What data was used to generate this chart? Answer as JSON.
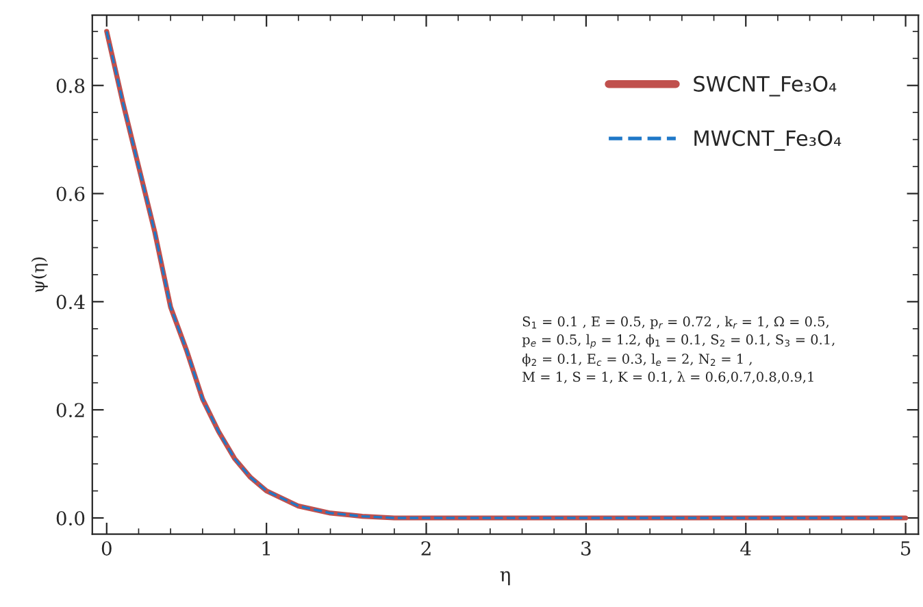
{
  "chart_data": {
    "type": "line",
    "xlabel": "η",
    "ylabel": "ψ(η)",
    "x": [
      0,
      0.1,
      0.2,
      0.3,
      0.4,
      0.5,
      0.6,
      0.7,
      0.8,
      0.9,
      1.0,
      1.2,
      1.4,
      1.6,
      1.8,
      2,
      2.5,
      3,
      3.5,
      4,
      4.5,
      5
    ],
    "series": [
      {
        "name": "SWCNT_Fe₃O₄",
        "color": "#c0504d",
        "line_style": "solid",
        "values": [
          0.9,
          0.77,
          0.65,
          0.53,
          0.39,
          0.31,
          0.22,
          0.16,
          0.11,
          0.075,
          0.05,
          0.022,
          0.009,
          0.003,
          0,
          0,
          0,
          0,
          0,
          0,
          0,
          0
        ]
      },
      {
        "name": "MWCNT_Fe₃O₄",
        "color": "#1f78c8",
        "line_style": "dashed",
        "values": [
          0.9,
          0.77,
          0.65,
          0.53,
          0.39,
          0.31,
          0.22,
          0.16,
          0.11,
          0.075,
          0.05,
          0.022,
          0.009,
          0.003,
          0,
          0,
          0,
          0,
          0,
          0,
          0,
          0
        ]
      }
    ],
    "xlim": [
      -0.09,
      5.08
    ],
    "ylim": [
      -0.03,
      0.93
    ],
    "xticks": [
      0,
      1,
      2,
      3,
      4,
      5
    ],
    "yticks": [
      {
        "value": 0,
        "label": "0.0"
      },
      {
        "value": 0.2,
        "label": "0.2"
      },
      {
        "value": 0.4,
        "label": "0.4"
      },
      {
        "value": 0.6,
        "label": "0.6"
      },
      {
        "value": 0.8,
        "label": "0.8"
      }
    ],
    "annotations": [
      "S$_{1}$ = 0.1 , E = 0.5, p$_{r}$ = 0.72 , k$_{r}$ = 1, Ω = 0.5,\np$_{e}$ = 0.5, l$_{p}$ = 1.2, ϕ$_{1}$ = 0.1, S$_{2}$ = 0.1, S$_{3}$ = 0.1,\nϕ$_{2}$ = 0.1, E$_{c}$ = 0.3, l$_{e}$ = 2, N$_{2}$ = 1 ,\nM = 1, S = 1, K = 0.1, λ = 0.6,0.7,0.8,0.9,1"
    ],
    "legend": "top right",
    "grid": false,
    "marker": "none"
  }
}
